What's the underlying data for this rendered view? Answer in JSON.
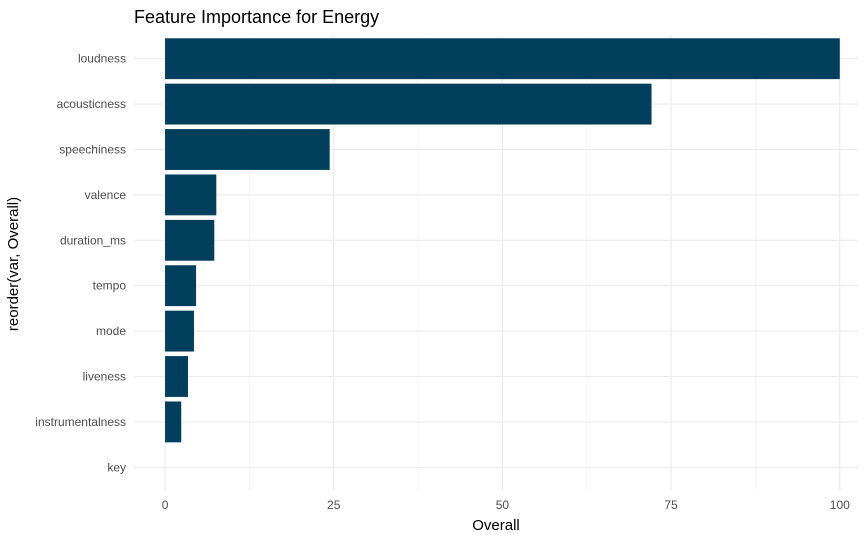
{
  "chart_data": {
    "type": "bar",
    "orientation": "horizontal",
    "title": "Feature Importance for Energy",
    "xlabel": "Overall",
    "ylabel": "reorder(var, Overall)",
    "categories": [
      "loudness",
      "acousticness",
      "speechiness",
      "valence",
      "duration_ms",
      "tempo",
      "mode",
      "liveness",
      "instrumentalness",
      "key"
    ],
    "values": [
      100,
      72.1,
      24.4,
      7.6,
      7.3,
      4.6,
      4.3,
      3.4,
      2.4,
      0
    ],
    "xlim": [
      -4.6,
      102.7
    ],
    "xticks": [
      0,
      25,
      50,
      75,
      100
    ],
    "grid": true,
    "legend": "none",
    "colors": {
      "bar": "#003F5C",
      "grid_major": "#EBEBEB",
      "grid_minor": "#F2F2F2"
    }
  }
}
